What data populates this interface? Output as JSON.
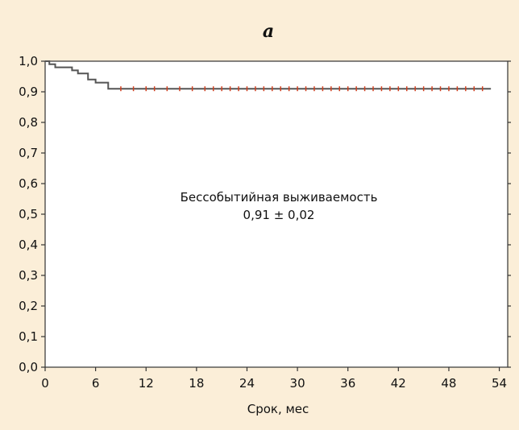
{
  "panel_label": "a",
  "chart_data": {
    "type": "line",
    "title": "",
    "xlabel": "Срок, мес",
    "ylabel": "",
    "xlim": [
      0,
      55
    ],
    "ylim": [
      0,
      1
    ],
    "x_ticks": [
      0,
      6,
      12,
      18,
      24,
      30,
      36,
      42,
      48,
      54
    ],
    "x_tick_labels": [
      "0",
      "6",
      "12",
      "18",
      "24",
      "30",
      "36",
      "42",
      "48",
      "54"
    ],
    "y_ticks": [
      0,
      0.1,
      0.2,
      0.3,
      0.4,
      0.5,
      0.6,
      0.7,
      0.8,
      0.9,
      1.0
    ],
    "y_tick_labels": [
      "0,0",
      "0,1",
      "0,2",
      "0,3",
      "0,4",
      "0,5",
      "0,6",
      "0,7",
      "0,8",
      "0,9",
      "1,0"
    ],
    "grid": false,
    "step": true,
    "line_color": "#555555",
    "censor_color": "#d04020",
    "series": [
      {
        "x": [
          0,
          0.5,
          1.2,
          3.2,
          3.9,
          5.1,
          6.0,
          7.5,
          53
        ],
        "values": [
          1.0,
          0.99,
          0.98,
          0.97,
          0.96,
          0.94,
          0.93,
          0.91,
          0.91
        ]
      }
    ],
    "censored_x": [
      9,
      10.5,
      12,
      13,
      14.5,
      16,
      17.5,
      19,
      20,
      21,
      22,
      23,
      24,
      25,
      26,
      27,
      28,
      29,
      30,
      31,
      32,
      33,
      34,
      35,
      36,
      37,
      38,
      39,
      40,
      41,
      42,
      43,
      44,
      45,
      46,
      47,
      48,
      49,
      50,
      51,
      52
    ],
    "annotations": [
      "Бессобытийная выживаемость",
      "0,91 ± 0,02"
    ]
  }
}
